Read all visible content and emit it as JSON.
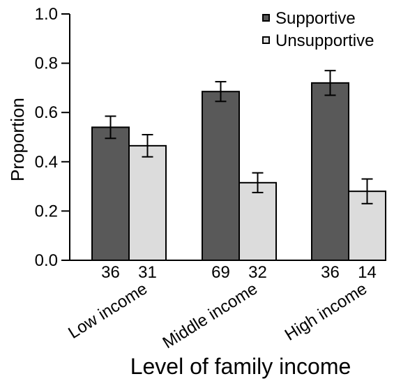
{
  "chart_data": {
    "type": "bar",
    "title": "",
    "xlabel": "Level of family income",
    "ylabel": "Proportion",
    "ylim": [
      0,
      1.0
    ],
    "yticks": [
      "0.0",
      "0.2",
      "0.4",
      "0.6",
      "0.8",
      "1.0"
    ],
    "grid": false,
    "legend_position": "top-right",
    "categories": [
      "Low income",
      "Middle income",
      "High income"
    ],
    "series": [
      {
        "name": "Supportive",
        "color": "#595959",
        "values": [
          0.54,
          0.685,
          0.72
        ],
        "error_low": [
          0.495,
          0.645,
          0.67
        ],
        "error_high": [
          0.585,
          0.725,
          0.77
        ],
        "counts": [
          "36",
          "69",
          "36"
        ]
      },
      {
        "name": "Unsupportive",
        "color": "#dcdcdc",
        "values": [
          0.465,
          0.315,
          0.28
        ],
        "error_low": [
          0.42,
          0.275,
          0.23
        ],
        "error_high": [
          0.51,
          0.355,
          0.33
        ],
        "counts": [
          "31",
          "32",
          "14"
        ]
      }
    ]
  }
}
